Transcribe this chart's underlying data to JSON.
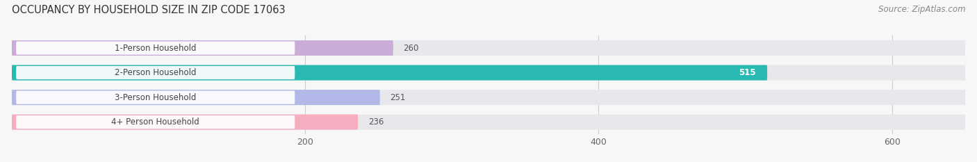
{
  "title": "OCCUPANCY BY HOUSEHOLD SIZE IN ZIP CODE 17063",
  "source": "Source: ZipAtlas.com",
  "categories": [
    "1-Person Household",
    "2-Person Household",
    "3-Person Household",
    "4+ Person Household"
  ],
  "values": [
    260,
    515,
    251,
    236
  ],
  "bar_colors": [
    "#caadd6",
    "#2ab8b2",
    "#b2b8e8",
    "#f5adc0"
  ],
  "bg_bar_color": "#e8e8ec",
  "xlim": [
    0,
    650
  ],
  "xticks": [
    200,
    400,
    600
  ],
  "title_fontsize": 10.5,
  "source_fontsize": 8.5,
  "label_fontsize": 8.5,
  "tick_fontsize": 9,
  "bar_height": 0.62,
  "background_color": "#f7f7f7"
}
